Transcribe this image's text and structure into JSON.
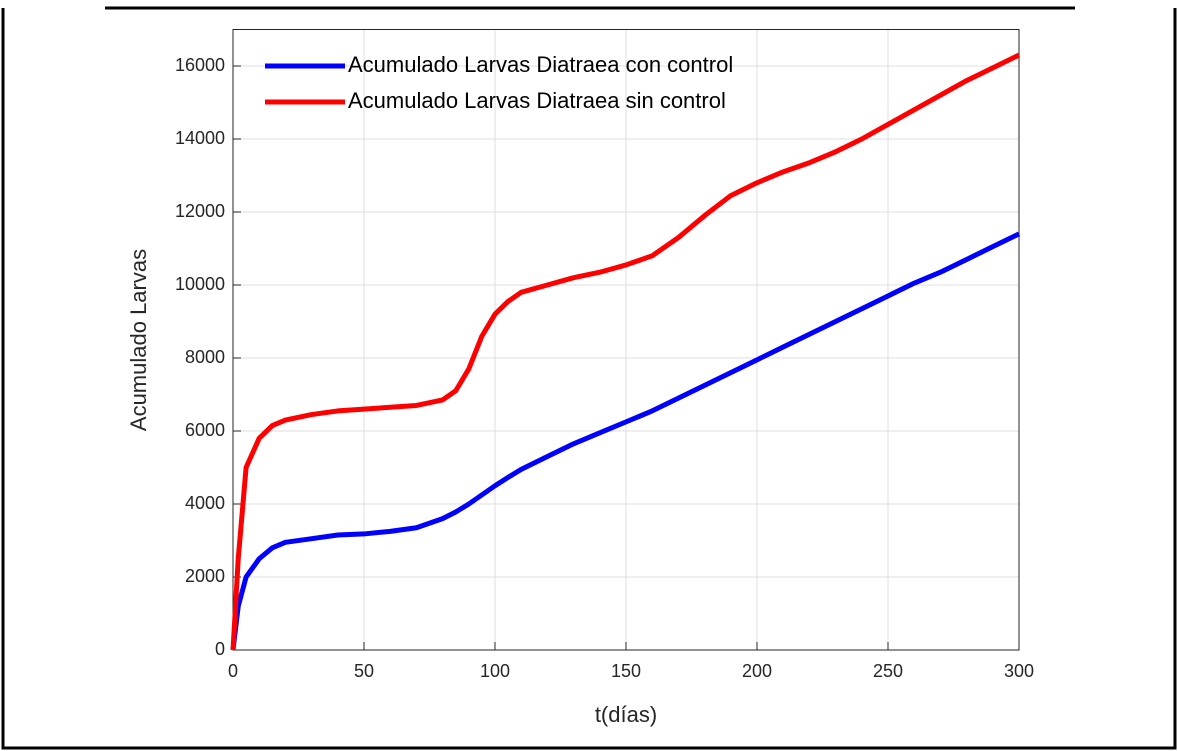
{
  "chart_data": {
    "type": "line",
    "xlabel": "t(días)",
    "ylabel": "Acumulado Larvas",
    "x": [
      0,
      2,
      5,
      10,
      15,
      20,
      30,
      40,
      50,
      60,
      70,
      80,
      85,
      90,
      95,
      100,
      105,
      110,
      120,
      130,
      140,
      150,
      160,
      170,
      180,
      190,
      200,
      210,
      220,
      230,
      240,
      250,
      260,
      270,
      280,
      290,
      300
    ],
    "series": [
      {
        "name": "Acumulado Larvas Diatraea con control",
        "color": "#0000ff",
        "values": [
          0,
          1200,
          2000,
          2500,
          2800,
          2950,
          3050,
          3150,
          3180,
          3250,
          3350,
          3600,
          3780,
          4000,
          4250,
          4500,
          4730,
          4950,
          5300,
          5650,
          5950,
          6250,
          6550,
          6900,
          7250,
          7600,
          7950,
          8300,
          8650,
          9000,
          9350,
          9700,
          10050,
          10350,
          10700,
          11050,
          11400
        ]
      },
      {
        "name": "Acumulado Larvas Diatraea sin control",
        "color": "#ff0000",
        "values": [
          0,
          2500,
          5000,
          5800,
          6150,
          6300,
          6450,
          6550,
          6600,
          6650,
          6700,
          6850,
          7100,
          7700,
          8600,
          9200,
          9550,
          9800,
          10000,
          10200,
          10350,
          10550,
          10800,
          11300,
          11900,
          12450,
          12800,
          13100,
          13350,
          13650,
          14000,
          14400,
          14800,
          15200,
          15600,
          15950,
          16300
        ]
      }
    ],
    "xlim": [
      0,
      300
    ],
    "xticks": [
      0,
      50,
      100,
      150,
      200,
      250,
      300
    ],
    "ylim": [
      0,
      17000
    ],
    "yticks": [
      0,
      2000,
      4000,
      6000,
      8000,
      10000,
      12000,
      14000,
      16000
    ],
    "grid": true,
    "legend": "upper-left"
  }
}
